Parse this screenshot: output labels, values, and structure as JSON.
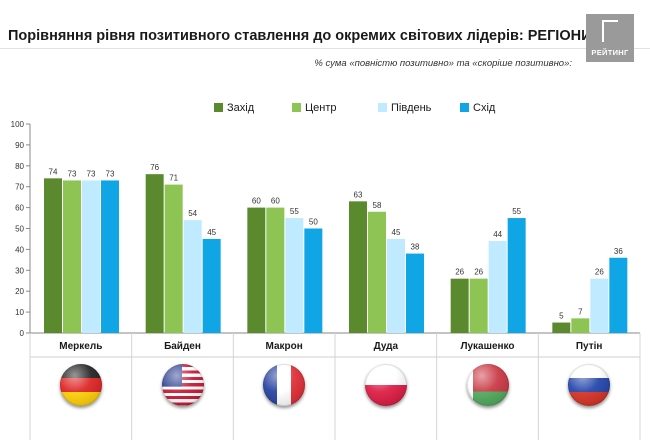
{
  "header": {
    "title": "Порівняння рівня позитивного ставлення до окремих світових лідерів: РЕГІОНИ",
    "subtitle": "% сума «повністю позитивно» та «скоріше позитивно»:",
    "logo_text": "РЕЙТИНГ"
  },
  "colors": {
    "zakhid": "#5b8a2e",
    "tsentr": "#8dc454",
    "pivden": "#bfeaff",
    "skhid": "#10a6e6"
  },
  "flags": [
    "germany-flag-icon",
    "usa-flag-icon",
    "france-flag-icon",
    "poland-flag-icon",
    "belarus-flag-icon",
    "russia-flag-icon"
  ],
  "chart_data": {
    "type": "bar",
    "categories": [
      "Меркель",
      "Байден",
      "Макрон",
      "Дуда",
      "Лукашенко",
      "Путін"
    ],
    "series": [
      {
        "name": "Захід",
        "values": [
          74,
          76,
          60,
          63,
          26,
          5
        ]
      },
      {
        "name": "Центр",
        "values": [
          73,
          71,
          60,
          58,
          26,
          7
        ]
      },
      {
        "name": "Південь",
        "values": [
          73,
          54,
          55,
          45,
          44,
          26
        ]
      },
      {
        "name": "Схід",
        "values": [
          73,
          45,
          50,
          38,
          55,
          36
        ]
      }
    ],
    "yticks": [
      "0",
      "10",
      "20",
      "30",
      "40",
      "50",
      "60",
      "70",
      "80",
      "90",
      "100"
    ],
    "ylim": [
      0,
      100
    ],
    "grid": false,
    "legend": "top-center"
  }
}
